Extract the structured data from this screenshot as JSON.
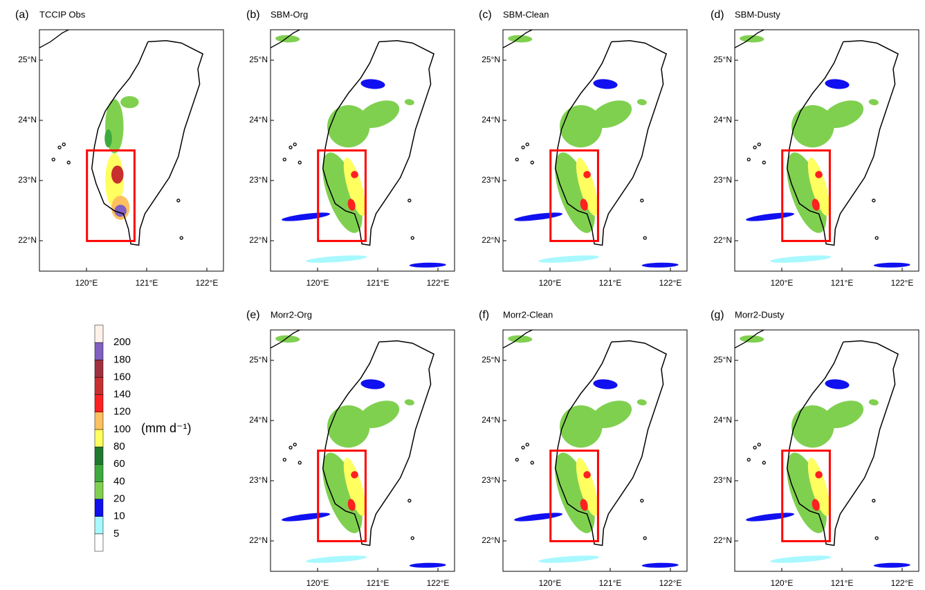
{
  "panels": [
    {
      "label": "(a)",
      "title": "TCCIP Obs"
    },
    {
      "label": "(b)",
      "title": "SBM-Org"
    },
    {
      "label": "(c)",
      "title": "SBM-Clean"
    },
    {
      "label": "(d)",
      "title": "SBM-Dusty"
    },
    {
      "label": "(e)",
      "title": "Morr2-Org"
    },
    {
      "label": "(f)",
      "title": "Morr2-Clean"
    },
    {
      "label": "(g)",
      "title": "Morr2-Dusty"
    }
  ],
  "lat_ticks": [
    "25°N",
    "24°N",
    "23°N",
    "22°N"
  ],
  "lon_ticks": [
    "120°E",
    "121°E",
    "122°E"
  ],
  "colorbar": {
    "levels": [
      5,
      10,
      20,
      40,
      60,
      80,
      100,
      120,
      140,
      160,
      180,
      200
    ],
    "unit": "(mm d⁻¹)"
  }
}
